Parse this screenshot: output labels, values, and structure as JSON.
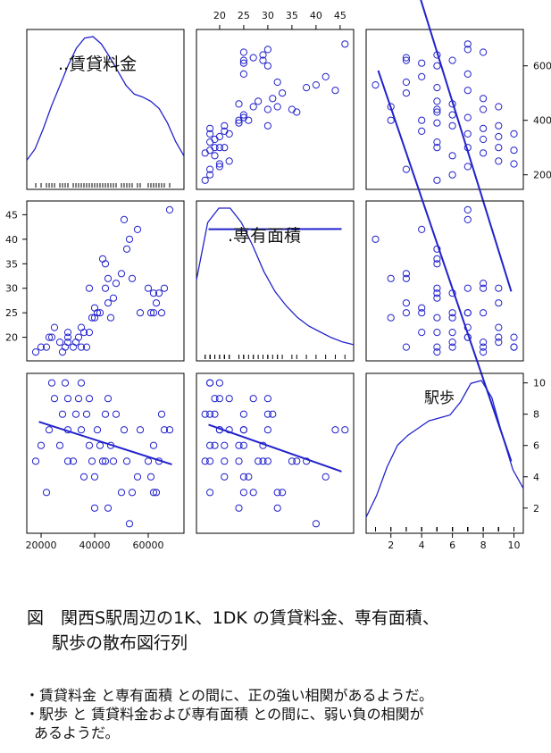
{
  "chart_data": {
    "type": "scatter_matrix",
    "variables": [
      {
        "name": "賃貸料金",
        "label": "..賃貸料金",
        "range": [
          17000,
          71000
        ],
        "ticks": [
          20000,
          40000,
          60000
        ],
        "tick_labels": [
          "20000",
          "40000",
          "60000"
        ],
        "axis_side": "right",
        "density": [
          0.14,
          0.22,
          0.36,
          0.52,
          0.66,
          0.8,
          0.92,
          0.99,
          1.0,
          0.95,
          0.86,
          0.76,
          0.66,
          0.6,
          0.58,
          0.55,
          0.5,
          0.4,
          0.27,
          0.17
        ]
      },
      {
        "name": "専有面積",
        "label": ".専有面積",
        "range": [
          16.5,
          46.5
        ],
        "ticks": [
          20,
          25,
          30,
          35,
          40,
          45
        ],
        "tick_labels": [
          "20",
          "25",
          "30",
          "35",
          "40",
          "45"
        ],
        "axis_side": "top_left",
        "density": [
          0.5,
          0.9,
          1.0,
          1.0,
          0.9,
          0.74,
          0.56,
          0.42,
          0.32,
          0.24,
          0.18,
          0.14,
          0.1,
          0.07,
          0.05
        ]
      },
      {
        "name": "駅歩",
        "label": "駅歩",
        "range": [
          0.8,
          10.2
        ],
        "ticks": [
          2,
          4,
          6,
          8,
          10
        ],
        "tick_labels": [
          "2",
          "4",
          "6",
          "8",
          "10"
        ],
        "axis_side": "right_bottom",
        "density": [
          0.05,
          0.2,
          0.4,
          0.55,
          0.62,
          0.67,
          0.72,
          0.74,
          0.76,
          0.85,
          0.98,
          1.0,
          0.88,
          0.62,
          0.38,
          0.25
        ]
      }
    ],
    "points": [
      [
        18000,
        17,
        5
      ],
      [
        20000,
        18,
        6
      ],
      [
        22000,
        18,
        3
      ],
      [
        23000,
        20,
        7
      ],
      [
        24000,
        20,
        10
      ],
      [
        25000,
        22,
        9
      ],
      [
        27000,
        19,
        6
      ],
      [
        28000,
        17,
        8
      ],
      [
        29000,
        18,
        10
      ],
      [
        30000,
        19,
        9
      ],
      [
        30000,
        20,
        7
      ],
      [
        30000,
        21,
        5
      ],
      [
        32000,
        18,
        5
      ],
      [
        33000,
        19,
        8
      ],
      [
        34000,
        20,
        9
      ],
      [
        35000,
        18,
        10
      ],
      [
        35000,
        22,
        7
      ],
      [
        36000,
        21,
        4
      ],
      [
        37000,
        18,
        8
      ],
      [
        38000,
        21,
        6
      ],
      [
        39000,
        24,
        5
      ],
      [
        40000,
        24,
        2
      ],
      [
        40000,
        26,
        4
      ],
      [
        41000,
        25,
        7
      ],
      [
        42000,
        25,
        6
      ],
      [
        43000,
        36,
        5
      ],
      [
        44000,
        30,
        8
      ],
      [
        45000,
        32,
        2
      ],
      [
        45000,
        27,
        9
      ],
      [
        46000,
        24,
        6
      ],
      [
        47000,
        28,
        5
      ],
      [
        48000,
        31,
        8
      ],
      [
        50000,
        33,
        3
      ],
      [
        51000,
        44,
        7
      ],
      [
        52000,
        38,
        5
      ],
      [
        53000,
        40,
        1
      ],
      [
        54000,
        32,
        3
      ],
      [
        56000,
        42,
        4
      ],
      [
        57000,
        25,
        7
      ],
      [
        60000,
        30,
        5
      ],
      [
        61000,
        25,
        4
      ],
      [
        62000,
        25,
        3
      ],
      [
        62000,
        29,
        6
      ],
      [
        63000,
        27,
        3
      ],
      [
        64000,
        29,
        5
      ],
      [
        65000,
        25,
        8
      ],
      [
        66000,
        30,
        7
      ],
      [
        68000,
        46,
        7
      ],
      [
        44000,
        35,
        5
      ],
      [
        38000,
        30,
        9
      ]
    ],
    "regression": {
      "x_on_y_0_1": [
        0.3,
        17.6
      ],
      "x_on_y_0_2": [
        -5.49e-05,
        8.57
      ],
      "x_on_y_1_2": [
        -0.1085,
        9.25
      ]
    }
  },
  "caption": {
    "line1": "図　関西S駅周辺の1K、1DK の賃貸料金、専有面積、",
    "line2": "駅歩の散布図行列"
  },
  "notes": {
    "item1": "・賃貸料金 と専有面積 との間に、正の強い相関があるようだ。",
    "item2a": "・駅歩 と 賃貸料金および専有面積 との間に、弱い負の相関が",
    "item2b": "あるようだ。"
  },
  "colors": {
    "series": "#2222cc",
    "frame": "#000000",
    "text": "#111111"
  }
}
